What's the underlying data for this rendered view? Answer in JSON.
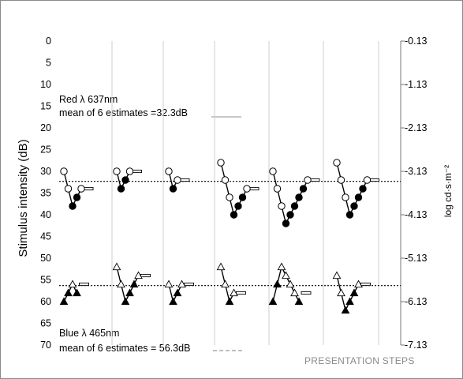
{
  "chart_data": {
    "type": "scatter",
    "ylabel_left": "Stimulus intensity (dB)",
    "ylabel_right": "log cd·s·m⁻²",
    "xlabel": "PRESENTATION STEPS",
    "ylim": [
      0,
      70
    ],
    "y_ticks_left": [
      "0",
      "5",
      "10",
      "15",
      "20",
      "25",
      "30",
      "35",
      "40",
      "45",
      "50",
      "55",
      "60",
      "65",
      "70"
    ],
    "y_ticks_right": [
      "-0.13",
      "-1.13",
      "-2.13",
      "-3.13",
      "-4.13",
      "-5.13",
      "-6.13",
      "-7.13"
    ],
    "grid": "vertical",
    "annotations": {
      "red_line1": "Red λ 637nm",
      "red_line2": "mean of 6 estimates =32.3dB",
      "blue_line1": "Blue  λ  465nm",
      "blue_line2": "mean of 6 estimates = 56.3dB"
    },
    "reference_lines": [
      {
        "label": "red mean",
        "value": 32.3
      },
      {
        "label": "blue mean",
        "value": 56.3
      }
    ],
    "red_series": [
      {
        "points": [
          [
            0,
            30,
            "o"
          ],
          [
            1,
            34,
            "o"
          ],
          [
            2,
            38,
            "f"
          ],
          [
            3,
            36,
            "f"
          ],
          [
            4,
            34,
            "o"
          ]
        ],
        "threshold": 34
      },
      {
        "points": [
          [
            0,
            30,
            "o"
          ],
          [
            1,
            34,
            "f"
          ],
          [
            2,
            32,
            "f"
          ],
          [
            3,
            30,
            "o"
          ]
        ],
        "threshold": 30
      },
      {
        "points": [
          [
            0,
            30,
            "o"
          ],
          [
            1,
            34,
            "f"
          ],
          [
            2,
            32,
            "o"
          ]
        ],
        "threshold": 32
      },
      {
        "points": [
          [
            0,
            28,
            "o"
          ],
          [
            1,
            32,
            "o"
          ],
          [
            2,
            36,
            "o"
          ],
          [
            3,
            40,
            "f"
          ],
          [
            4,
            38,
            "f"
          ],
          [
            5,
            36,
            "f"
          ],
          [
            6,
            34,
            "o"
          ]
        ],
        "threshold": 34
      },
      {
        "points": [
          [
            0,
            30,
            "o"
          ],
          [
            1,
            34,
            "o"
          ],
          [
            2,
            38,
            "o"
          ],
          [
            3,
            42,
            "f"
          ],
          [
            4,
            40,
            "f"
          ],
          [
            5,
            38,
            "f"
          ],
          [
            6,
            36,
            "f"
          ],
          [
            7,
            34,
            "f"
          ],
          [
            8,
            32,
            "o"
          ]
        ],
        "threshold": 32
      },
      {
        "points": [
          [
            0,
            28,
            "o"
          ],
          [
            1,
            32,
            "o"
          ],
          [
            2,
            36,
            "o"
          ],
          [
            3,
            40,
            "f"
          ],
          [
            4,
            38,
            "f"
          ],
          [
            5,
            36,
            "f"
          ],
          [
            6,
            34,
            "f"
          ],
          [
            7,
            32,
            "o"
          ]
        ],
        "threshold": 32
      }
    ],
    "blue_series": [
      {
        "points": [
          [
            0,
            60,
            "f"
          ],
          [
            1,
            58,
            "f"
          ],
          [
            2,
            56,
            "o"
          ],
          [
            3,
            58,
            "f"
          ]
        ],
        "threshold": 56
      },
      {
        "points": [
          [
            0,
            52,
            "o"
          ],
          [
            1,
            56,
            "o"
          ],
          [
            2,
            60,
            "f"
          ],
          [
            3,
            58,
            "f"
          ],
          [
            4,
            56,
            "f"
          ],
          [
            5,
            54,
            "o"
          ]
        ],
        "threshold": 54
      },
      {
        "points": [
          [
            0,
            56,
            "o"
          ],
          [
            1,
            60,
            "f"
          ],
          [
            2,
            58,
            "f"
          ],
          [
            3,
            56,
            "o"
          ]
        ],
        "threshold": 56
      },
      {
        "points": [
          [
            0,
            52,
            "o"
          ],
          [
            1,
            56,
            "o"
          ],
          [
            2,
            60,
            "f"
          ],
          [
            3,
            58,
            "o"
          ]
        ],
        "threshold": 58
      },
      {
        "points": [
          [
            0,
            60,
            "f"
          ],
          [
            1,
            56,
            "f"
          ],
          [
            2,
            52,
            "o"
          ],
          [
            3,
            54,
            "o"
          ],
          [
            4,
            56,
            "o"
          ],
          [
            5,
            58,
            "o"
          ],
          [
            6,
            60,
            "f"
          ]
        ],
        "threshold": 58
      },
      {
        "points": [
          [
            0,
            54,
            "o"
          ],
          [
            1,
            58,
            "o"
          ],
          [
            2,
            62,
            "f"
          ],
          [
            3,
            60,
            "f"
          ],
          [
            4,
            58,
            "f"
          ],
          [
            5,
            56,
            "o"
          ]
        ],
        "threshold": 56
      }
    ]
  }
}
